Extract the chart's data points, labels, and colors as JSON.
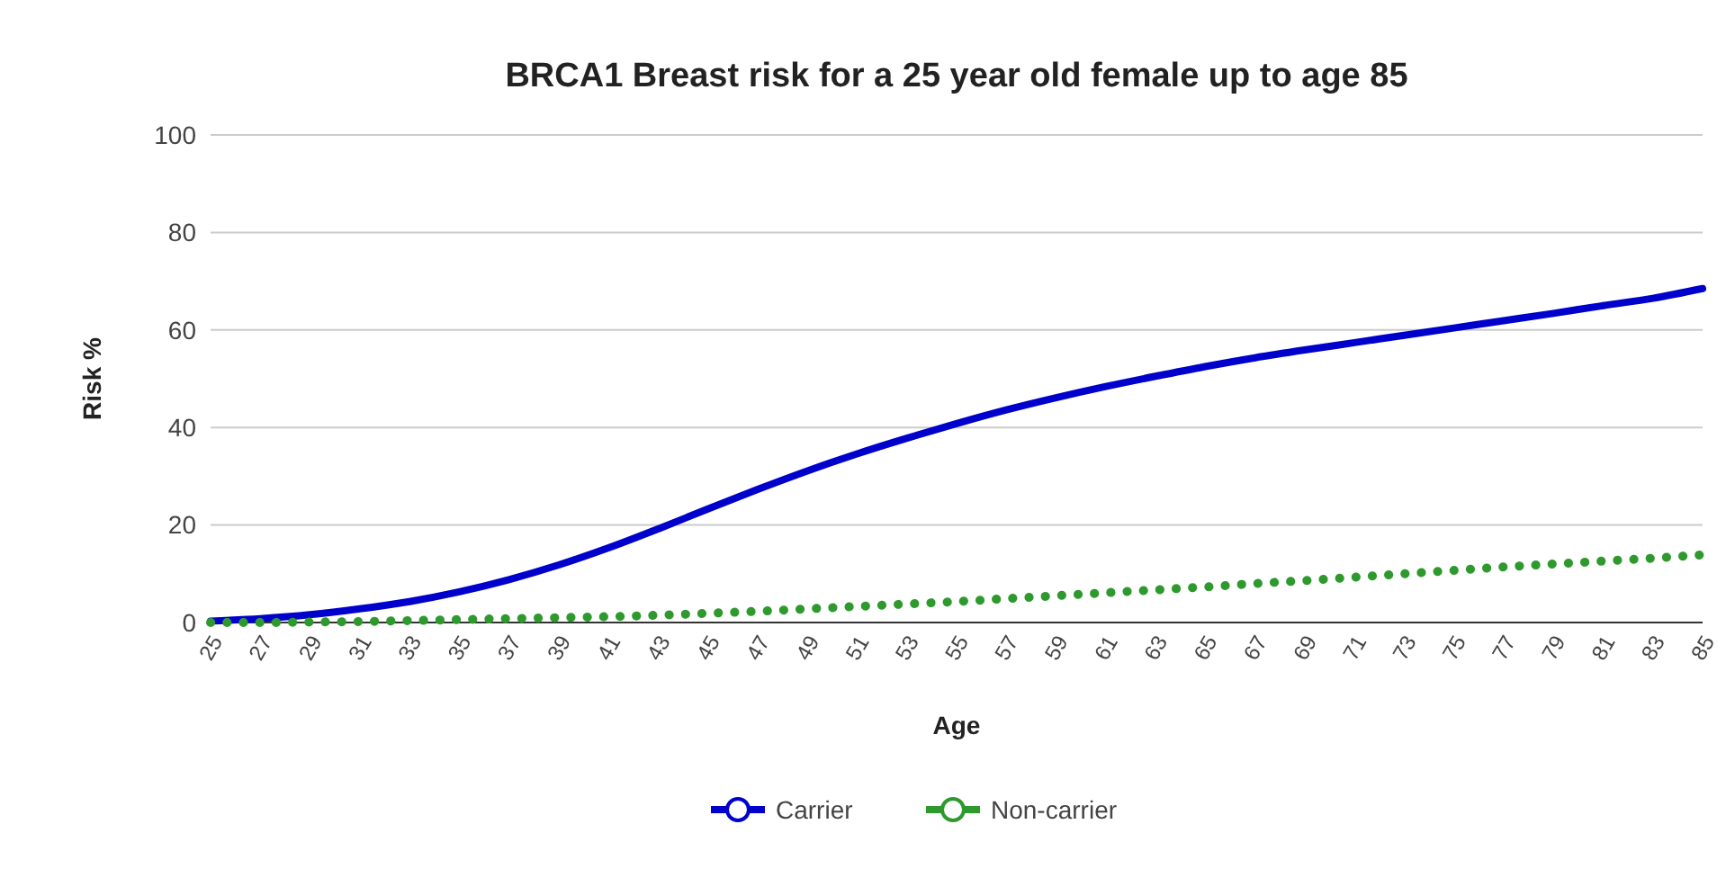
{
  "chart_data": {
    "type": "line",
    "title": "BRCA1 Breast risk for a 25 year old female up to age 85",
    "xlabel": "Age",
    "ylabel": "Risk %",
    "x": [
      25,
      27,
      29,
      31,
      33,
      35,
      37,
      39,
      41,
      43,
      45,
      47,
      49,
      51,
      53,
      55,
      57,
      59,
      61,
      63,
      65,
      67,
      69,
      71,
      73,
      75,
      77,
      79,
      81,
      83,
      85
    ],
    "series": [
      {
        "name": "Carrier",
        "color": "#0000cc",
        "line_style": "solid",
        "values": [
          0.3,
          0.8,
          1.6,
          2.8,
          4.3,
          6.3,
          8.8,
          11.8,
          15.3,
          19.2,
          23.3,
          27.3,
          31.1,
          34.6,
          37.8,
          40.8,
          43.6,
          46.1,
          48.4,
          50.5,
          52.5,
          54.3,
          55.9,
          57.4,
          58.9,
          60.4,
          61.9,
          63.4,
          65,
          66.5,
          68.5
        ]
      },
      {
        "name": "Non-carrier",
        "color": "#2e9a2e",
        "line_style": "dotted",
        "values": [
          0,
          0,
          0.1,
          0.2,
          0.4,
          0.6,
          0.8,
          1,
          1.2,
          1.5,
          1.9,
          2.3,
          2.8,
          3.3,
          3.8,
          4.3,
          4.9,
          5.5,
          6.1,
          6.7,
          7.3,
          8,
          8.6,
          9.3,
          10,
          10.7,
          11.4,
          12,
          12.6,
          13.2,
          13.9
        ]
      }
    ],
    "xlim": [
      25,
      85
    ],
    "xticks": [
      25,
      27,
      29,
      31,
      33,
      35,
      37,
      39,
      41,
      43,
      45,
      47,
      49,
      51,
      53,
      55,
      57,
      59,
      61,
      63,
      65,
      67,
      69,
      71,
      73,
      75,
      77,
      79,
      81,
      83,
      85
    ],
    "ylim": [
      0,
      100
    ],
    "yticks": [
      0,
      20,
      40,
      60,
      80,
      100
    ],
    "grid": "y",
    "legend": "bottom"
  }
}
